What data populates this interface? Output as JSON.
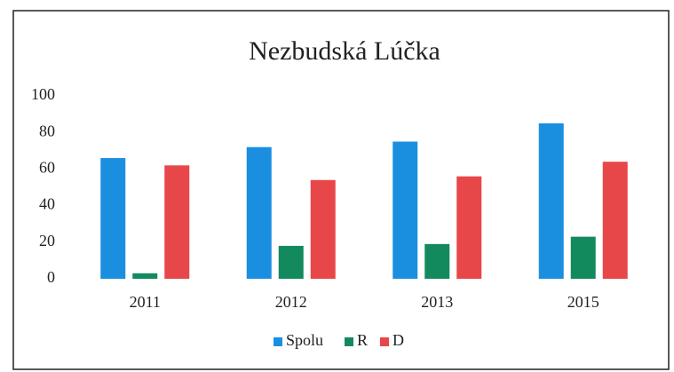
{
  "chart_data": {
    "type": "bar",
    "title": "Nezbudská Lúčka",
    "categories": [
      "2011",
      "2012",
      "2013",
      "2015"
    ],
    "series": [
      {
        "name": "Spolu",
        "color": "#1a8fe0",
        "values": [
          66,
          72,
          75,
          85
        ]
      },
      {
        "name": "R",
        "color": "#138a5e",
        "values": [
          3,
          18,
          19,
          23
        ]
      },
      {
        "name": "D",
        "color": "#e8474a",
        "values": [
          62,
          54,
          56,
          64
        ]
      }
    ],
    "ylim": [
      0,
      100
    ],
    "yticks": [
      0,
      20,
      40,
      60,
      80,
      100
    ],
    "legend": "bottom"
  }
}
